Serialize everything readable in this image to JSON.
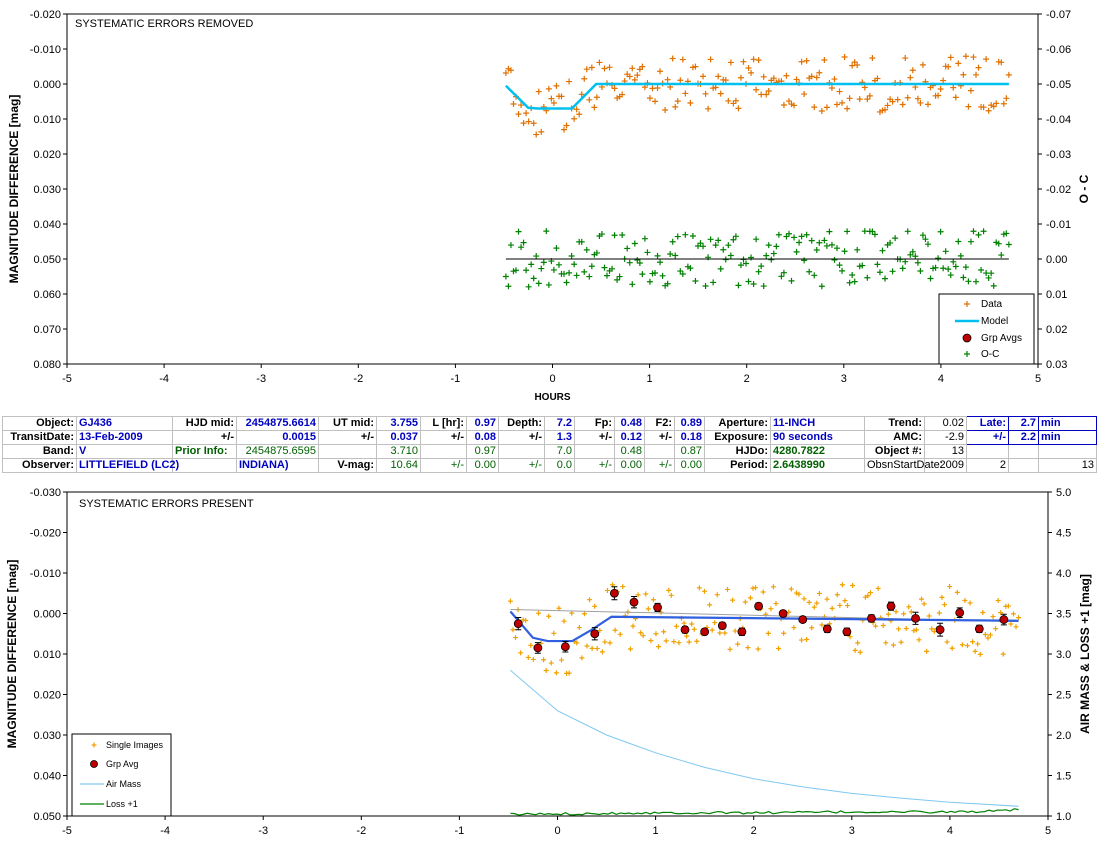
{
  "chart_data": [
    {
      "type": "scatter",
      "title": "SYSTEMATIC ERRORS REMOVED",
      "xlabel": "HOURS",
      "ylabel": "MAGNITUDE DIFFERENCE [mag]",
      "y2label": "O - C",
      "xlim": [
        -5,
        5
      ],
      "ylim": [
        -0.02,
        0.08
      ],
      "y_inverted": true,
      "y2lim": [
        -0.07,
        0.03
      ],
      "x_ticks": [
        "-5",
        "-4",
        "-3",
        "-2",
        "-1",
        "0",
        "1",
        "2",
        "3",
        "4",
        "5"
      ],
      "y_ticks": [
        "-0.020",
        "-0.010",
        "0.000",
        "0.010",
        "0.020",
        "0.030",
        "0.040",
        "0.050",
        "0.060",
        "0.070",
        "0.080"
      ],
      "y2_ticks": [
        "-0.07",
        "-0.06",
        "-0.05",
        "-0.04",
        "-0.03",
        "-0.02",
        "-0.01",
        "0.00",
        "0.01",
        "0.02",
        "0.03"
      ],
      "legend": [
        "Data",
        "Model",
        "Grp Avgs",
        "O-C"
      ],
      "legend_position": "bottom-right",
      "colors": {
        "data": "#e07000",
        "model": "#00c0f0",
        "grp": "#c00000",
        "oc": "#008000"
      },
      "model": {
        "x": [
          -0.48,
          -0.25,
          -0.15,
          0.2,
          0.45,
          4.7
        ],
        "y": [
          0.0005,
          0.0068,
          0.007,
          0.007,
          0.0,
          0.0
        ]
      },
      "oc_zero_line": 0.05
    },
    {
      "type": "scatter",
      "title": "SYSTEMATIC ERRORS PRESENT",
      "xlabel": "",
      "ylabel": "MAGNITUDE DIFFERENCE [mag]",
      "y2label": "AIR MASS & LOSS +1 [mag]",
      "xlim": [
        -5,
        5
      ],
      "ylim": [
        -0.03,
        0.05
      ],
      "y_inverted": true,
      "y2lim": [
        1.0,
        5.0
      ],
      "x_ticks": [
        "-5",
        "-4",
        "-3",
        "-2",
        "-1",
        "0",
        "1",
        "2",
        "3",
        "4",
        "5"
      ],
      "y_ticks": [
        "-0.030",
        "-0.020",
        "-0.010",
        "0.000",
        "0.010",
        "0.020",
        "0.030",
        "0.040",
        "0.050"
      ],
      "y2_ticks": [
        "5.0",
        "4.5",
        "4.0",
        "3.5",
        "3.0",
        "2.5",
        "2.0",
        "1.5",
        "1.0"
      ],
      "legend": [
        "Single Images",
        "Grp Avg",
        "Air Mass",
        "Loss +1"
      ],
      "legend_position": "bottom-left",
      "colors": {
        "single": "#f0a000",
        "grp": "#c00000",
        "airmass": "#80c8f0",
        "loss": "#008000",
        "model": "#3060e0",
        "trend": "#a0a0a0"
      },
      "group_averages": {
        "x": [
          -0.4,
          -0.2,
          0.08,
          0.38,
          0.58,
          0.78,
          1.02,
          1.3,
          1.5,
          1.68,
          1.88,
          2.05,
          2.3,
          2.5,
          2.75,
          2.95,
          3.2,
          3.4,
          3.65,
          3.9,
          4.1,
          4.3,
          4.55
        ],
        "y": [
          0.0025,
          0.0085,
          0.0082,
          0.005,
          -0.005,
          -0.0028,
          -0.0015,
          0.004,
          0.0045,
          0.003,
          0.0045,
          -0.0018,
          0.0,
          0.0015,
          0.0038,
          0.0045,
          0.0012,
          -0.0018,
          0.0012,
          0.004,
          -0.0002,
          0.0038,
          0.0015
        ],
        "err": [
          0.0015,
          0.0013,
          0.0013,
          0.0015,
          0.0016,
          0.0014,
          0.001,
          0.0008,
          0.0007,
          0.0008,
          0.0009,
          0.0008,
          0.0007,
          0.0007,
          0.0009,
          0.0009,
          0.0009,
          0.001,
          0.0015,
          0.0016,
          0.0012,
          0.0009,
          0.0013
        ]
      },
      "model": {
        "x": [
          -0.48,
          -0.25,
          -0.1,
          0.15,
          0.35,
          0.55,
          4.7
        ],
        "y": [
          -0.0005,
          0.006,
          0.0068,
          0.0068,
          0.004,
          0.0008,
          0.0018
        ]
      },
      "trend": {
        "x": [
          -0.48,
          4.7
        ],
        "y": [
          -0.001,
          0.002
        ]
      },
      "airmass": {
        "x": [
          -0.48,
          0.0,
          0.5,
          1.0,
          1.5,
          2.0,
          2.5,
          3.0,
          3.5,
          4.0,
          4.7
        ],
        "y": [
          2.8,
          2.3,
          2.0,
          1.78,
          1.6,
          1.46,
          1.36,
          1.28,
          1.22,
          1.17,
          1.12
        ]
      },
      "loss": {
        "x": [
          -0.48,
          1.0,
          2.0,
          3.0,
          4.0,
          4.5,
          4.7
        ],
        "y": [
          1.02,
          1.04,
          1.04,
          1.05,
          1.05,
          1.06,
          1.08
        ]
      }
    }
  ],
  "table": [
    [
      {
        "t": "Object:",
        "c": "lbl"
      },
      {
        "t": "GJ436",
        "c": "valL"
      },
      {
        "t": "HJD mid:",
        "c": "lbl"
      },
      {
        "t": "2454875.6614",
        "c": "val"
      },
      {
        "t": "UT mid:",
        "c": "lbl"
      },
      {
        "t": "3.755",
        "c": "val"
      },
      {
        "t": "L [hr]:",
        "c": "lbl"
      },
      {
        "t": "0.97",
        "c": "val"
      },
      {
        "t": "Depth:",
        "c": "lbl"
      },
      {
        "t": "7.2",
        "c": "val"
      },
      {
        "t": "Fp:",
        "c": "lbl"
      },
      {
        "t": "0.48",
        "c": "val"
      },
      {
        "t": "F2:",
        "c": "lbl"
      },
      {
        "t": "0.89",
        "c": "val"
      },
      {
        "t": "Aperture:",
        "c": "lbl"
      },
      {
        "t": "11-INCH",
        "c": "valL"
      },
      {
        "t": "Trend:",
        "c": "lbl"
      },
      {
        "t": "0.02",
        "c": "num"
      },
      {
        "t": "Late:",
        "c": "val boxed"
      },
      {
        "t": "2.7",
        "c": "val boxed"
      },
      {
        "t": "min",
        "c": "valL boxed"
      }
    ],
    [
      {
        "t": "TransitDate:",
        "c": "lbl"
      },
      {
        "t": "13-Feb-2009",
        "c": "valL"
      },
      {
        "t": "+/-",
        "c": "lbl"
      },
      {
        "t": "0.0015",
        "c": "val"
      },
      {
        "t": "+/-",
        "c": "lbl"
      },
      {
        "t": "0.037",
        "c": "val"
      },
      {
        "t": "+/-",
        "c": "lbl"
      },
      {
        "t": "0.08",
        "c": "val"
      },
      {
        "t": "+/-",
        "c": "lbl"
      },
      {
        "t": "1.3",
        "c": "val"
      },
      {
        "t": "+/-",
        "c": "lbl"
      },
      {
        "t": "0.12",
        "c": "val"
      },
      {
        "t": "+/-",
        "c": "lbl"
      },
      {
        "t": "0.18",
        "c": "val"
      },
      {
        "t": "Exposure:",
        "c": "lbl"
      },
      {
        "t": "90 seconds",
        "c": "valL"
      },
      {
        "t": "AMC:",
        "c": "lbl"
      },
      {
        "t": "-2.9",
        "c": "num"
      },
      {
        "t": "+/-",
        "c": "val boxed"
      },
      {
        "t": "2.2",
        "c": "val boxed"
      },
      {
        "t": "min",
        "c": "valL boxed"
      }
    ],
    [
      {
        "t": "Band:",
        "c": "lbl"
      },
      {
        "t": "V",
        "c": "valL"
      },
      {
        "t": "Prior Info:",
        "c": "grnL"
      },
      {
        "t": "2454875.6595",
        "c": "grn"
      },
      {
        "t": "",
        "c": "num"
      },
      {
        "t": "3.710",
        "c": "grn"
      },
      {
        "t": "",
        "c": "num"
      },
      {
        "t": "0.97",
        "c": "grn"
      },
      {
        "t": "",
        "c": "num"
      },
      {
        "t": "7.0",
        "c": "grn"
      },
      {
        "t": "",
        "c": "num"
      },
      {
        "t": "0.48",
        "c": "grn"
      },
      {
        "t": "",
        "c": "num"
      },
      {
        "t": "0.87",
        "c": "grn"
      },
      {
        "t": "HJDo:",
        "c": "lbl"
      },
      {
        "t": "4280.7822",
        "c": "grnL"
      },
      {
        "t": "Object #:",
        "c": "lbl"
      },
      {
        "t": "13",
        "c": "num"
      },
      {
        "t": "",
        "c": "num"
      },
      {
        "t": "",
        "c": "num"
      },
      {
        "t": "",
        "c": "num"
      }
    ],
    [
      {
        "t": "Observer:",
        "c": "lbl"
      },
      {
        "t": "LITTLEFIELD (LC2)",
        "c": "valL"
      },
      {
        "t": "",
        "c": "num"
      },
      {
        "t": "INDIANA)",
        "c": "valL"
      },
      {
        "t": "V-mag:",
        "c": "lbl"
      },
      {
        "t": "10.64",
        "c": "grn"
      },
      {
        "t": "+/-",
        "c": "grn"
      },
      {
        "t": "0.00",
        "c": "grn"
      },
      {
        "t": "+/-",
        "c": "grn"
      },
      {
        "t": "0.0",
        "c": "grn"
      },
      {
        "t": "+/-",
        "c": "grn"
      },
      {
        "t": "0.00",
        "c": "grn"
      },
      {
        "t": "+/-",
        "c": "grn"
      },
      {
        "t": "0.00",
        "c": "grn"
      },
      {
        "t": "Period:",
        "c": "lbl"
      },
      {
        "t": "2.6438990",
        "c": "grnL"
      },
      {
        "t": "ObsnStartDate:",
        "c": "lbl plain"
      },
      {
        "t": "2009",
        "c": "num"
      },
      {
        "t": "2",
        "c": "num"
      },
      {
        "t": "",
        "c": "num"
      },
      {
        "t": "13",
        "c": "num"
      }
    ]
  ]
}
